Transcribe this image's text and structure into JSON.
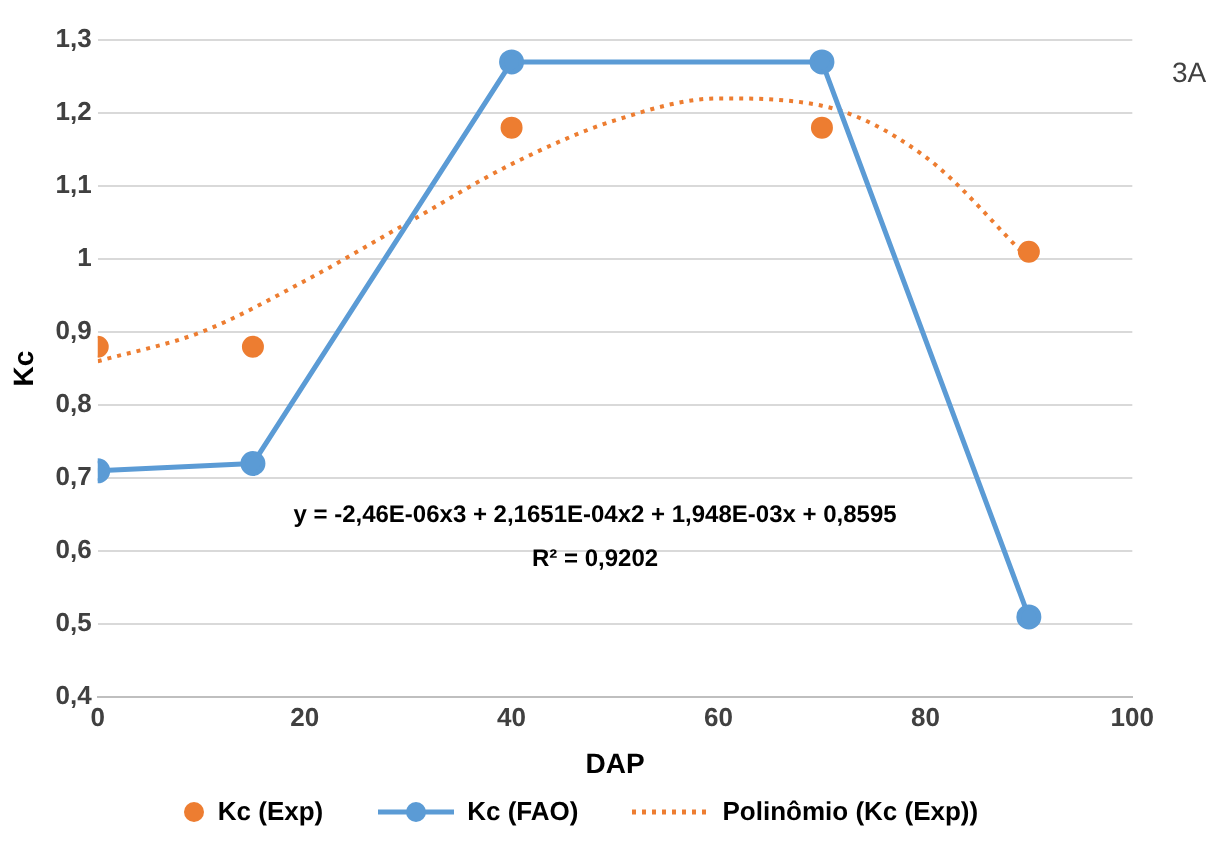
{
  "chart_data": {
    "type": "line",
    "xlabel": "DAP",
    "ylabel": "Kc",
    "xlim": [
      0,
      100
    ],
    "xticks": [
      0,
      20,
      40,
      60,
      80,
      100
    ],
    "ylim": [
      0.4,
      1.3
    ],
    "yticks": [
      {
        "value": 0.4,
        "label": "0,4"
      },
      {
        "value": 0.5,
        "label": "0,5"
      },
      {
        "value": 0.6,
        "label": "0,6"
      },
      {
        "value": 0.7,
        "label": "0,7"
      },
      {
        "value": 0.8,
        "label": "0,8"
      },
      {
        "value": 0.9,
        "label": "0,9"
      },
      1,
      {
        "value": 1.1,
        "label": "1,1"
      },
      {
        "value": 1.2,
        "label": "1,2"
      },
      {
        "value": 1.3,
        "label": "1,3"
      }
    ],
    "grid": "y",
    "legend": "bottom",
    "series": [
      {
        "name": "Kc (Exp)",
        "type": "scatter",
        "marker": "circle",
        "color": "#ed7d31",
        "x": [
          0,
          15,
          40,
          70,
          90
        ],
        "values": [
          0.88,
          0.88,
          1.18,
          1.18,
          1.01
        ]
      },
      {
        "name": "Kc (FAO)",
        "marker": "circle",
        "color": "#5b9bd5",
        "x": [
          0,
          15,
          40,
          70,
          90
        ],
        "values": [
          0.71,
          0.72,
          1.27,
          1.27,
          0.51
        ]
      },
      {
        "name": "Polinômio (Kc (Exp))",
        "type": "line",
        "marker": "none",
        "line_style": "dotted",
        "color": "#ed7d31",
        "x": [
          0,
          10,
          20,
          30,
          40,
          50,
          60,
          70,
          80,
          90
        ],
        "values": [
          0.86,
          0.9,
          0.97,
          1.05,
          1.13,
          1.19,
          1.22,
          1.21,
          1.14,
          1.0
        ]
      }
    ],
    "annotations": [
      "y = -2,46E-06x3 + 2,1651E-04x2 + 1,948E-03x + 0,8595",
      "R² = 0,9202",
      "3A"
    ]
  }
}
